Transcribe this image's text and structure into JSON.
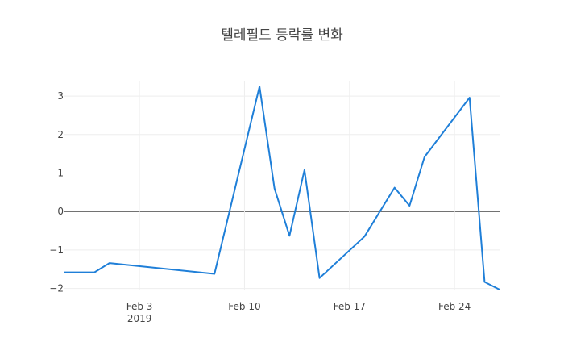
{
  "chart_data": {
    "type": "line",
    "title": "텔레필드 등락률 변화",
    "xlabel": "",
    "ylabel": "",
    "x_ticks": [
      "Feb 3",
      "Feb 10",
      "Feb 17",
      "Feb 24"
    ],
    "x_tick_year": "2019",
    "y_ticks": [
      "−2",
      "−1",
      "0",
      "1",
      "2",
      "3"
    ],
    "ylim": [
      -2.05,
      3.4
    ],
    "xlim": [
      "2019-01-29",
      "2019-02-27"
    ],
    "grid": true,
    "series": [
      {
        "color": "#1f7fd8",
        "x": [
          "2019-01-29",
          "2019-01-30",
          "2019-01-31",
          "2019-02-01",
          "2019-02-08",
          "2019-02-11",
          "2019-02-12",
          "2019-02-13",
          "2019-02-14",
          "2019-02-15",
          "2019-02-18",
          "2019-02-20",
          "2019-02-21",
          "2019-02-22",
          "2019-02-25",
          "2019-02-26",
          "2019-02-27"
        ],
        "values": [
          -1.58,
          -1.58,
          -1.58,
          -1.34,
          -1.62,
          3.25,
          0.6,
          -0.63,
          1.08,
          -1.73,
          -0.65,
          0.62,
          0.15,
          1.42,
          2.96,
          -1.83,
          -2.03
        ]
      }
    ]
  }
}
